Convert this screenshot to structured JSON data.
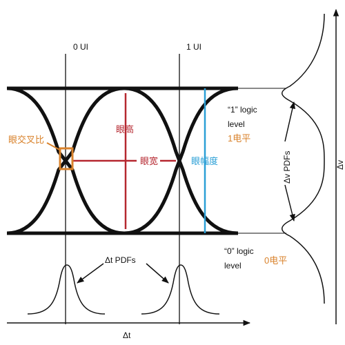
{
  "ui_markers": {
    "zero": "0 UI",
    "one": "1 UI"
  },
  "eye": {
    "crossing_ratio": "眼交叉比",
    "height": "眼高",
    "width": "眼宽",
    "amplitude": "眼幅度"
  },
  "levels": {
    "one_line1": "“1” logic",
    "one_line2": "level",
    "one_cn": "1电平",
    "zero_line1": "“0” logic",
    "zero_line2": "level",
    "zero_cn": "0电平"
  },
  "pdfs": {
    "dt": "Δt PDFs",
    "dv": "Δv PDFs"
  },
  "axes": {
    "x": "Δt",
    "y": "Δv"
  },
  "colors": {
    "black": "#111111",
    "red": "#b5272f",
    "orange": "#d9822b",
    "blue": "#2a9fd6"
  }
}
